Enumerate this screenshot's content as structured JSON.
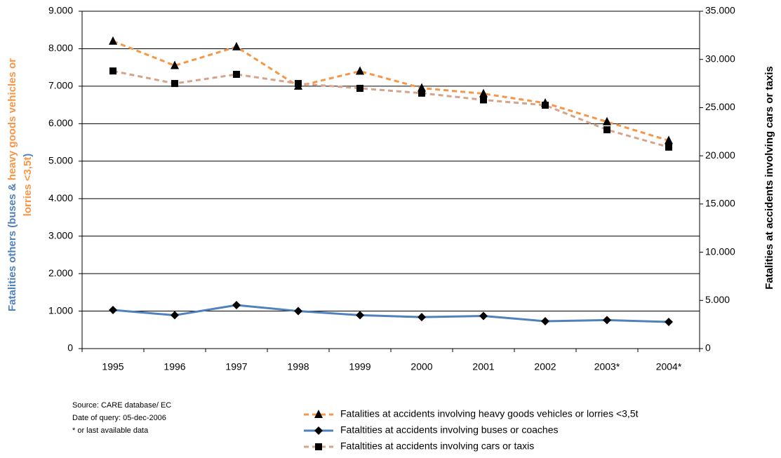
{
  "chart_data": {
    "type": "line",
    "categories": [
      "1995",
      "1996",
      "1997",
      "1998",
      "1999",
      "2000",
      "2001",
      "2002",
      "2003*",
      "2004*"
    ],
    "series": [
      {
        "name": "Fatalities at accidents involving heavy goods vehicles or lorries <3,5t",
        "color": "#f79646",
        "linestyle": "dashed",
        "marker": "triangle",
        "values": [
          8200,
          7550,
          8050,
          7000,
          7400,
          6950,
          6800,
          6550,
          6050,
          5550
        ]
      },
      {
        "name": "Fataltities at accidents involving buses or coaches",
        "color": "#4f81bd",
        "linestyle": "solid",
        "marker": "diamond",
        "values": [
          1030,
          890,
          1160,
          1000,
          890,
          840,
          870,
          730,
          760,
          710
        ]
      },
      {
        "name": "Fataltities at accidents involving cars or taxis",
        "color": "#d4a58a",
        "linestyle": "dashed",
        "marker": "square",
        "axis": "y2",
        "values": [
          28800,
          27500,
          28450,
          27500,
          27000,
          26500,
          25800,
          25250,
          22700,
          20900
        ]
      }
    ],
    "ylabel": [
      [
        {
          "text": "Fatalities others (buses & ",
          "color": "#4f81bd"
        },
        {
          "text": "heavy goods vehicles or",
          "color": "#f79646"
        }
      ],
      [
        {
          "text": "lorries <3,5t",
          "color": "#f79646"
        },
        {
          "text": ")",
          "color": "#4f81bd"
        }
      ]
    ],
    "y2label": {
      "text": "Fatalities at accidents involving cars or taxis",
      "color": "#d4a58a"
    },
    "ylim": [
      0,
      9000
    ],
    "yticks": [
      {
        "value": 0,
        "label": "0"
      },
      {
        "value": 1000,
        "label": "1.000"
      },
      {
        "value": 2000,
        "label": "2.000"
      },
      {
        "value": 3000,
        "label": "3.000"
      },
      {
        "value": 4000,
        "label": "4.000"
      },
      {
        "value": 5000,
        "label": "5.000"
      },
      {
        "value": 6000,
        "label": "6.000"
      },
      {
        "value": 7000,
        "label": "7.000"
      },
      {
        "value": 8000,
        "label": "8.000"
      },
      {
        "value": 9000,
        "label": "9.000"
      }
    ],
    "y2lim": [
      0,
      35000
    ],
    "y2ticks": [
      {
        "value": 0,
        "label": "0"
      },
      {
        "value": 5000,
        "label": "5.000"
      },
      {
        "value": 10000,
        "label": "10.000"
      },
      {
        "value": 15000,
        "label": "15.000"
      },
      {
        "value": 20000,
        "label": "20.000"
      },
      {
        "value": 25000,
        "label": "25.000"
      },
      {
        "value": 30000,
        "label": "30.000"
      },
      {
        "value": 35000,
        "label": "35.000"
      }
    ],
    "grid": true,
    "legend": "bottom",
    "notes": [
      "Source: CARE database/ EC",
      "Date of query: 05-dec-2006",
      "* or last available data"
    ]
  }
}
